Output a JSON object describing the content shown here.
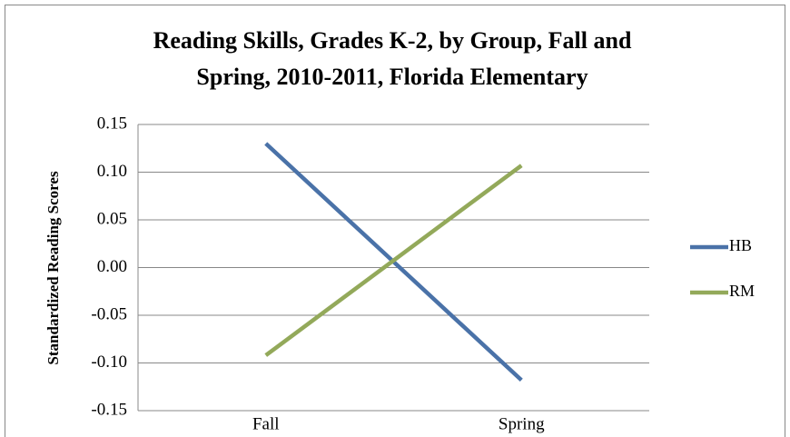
{
  "chart_data": {
    "type": "line",
    "title": [
      "Reading Skills, Grades K-2, by Group, Fall and",
      "Spring, 2010-2011, Florida Elementary"
    ],
    "y_label": "Standardized Reading Scores",
    "categories": [
      "Fall",
      "Spring"
    ],
    "series": [
      {
        "name": "HB",
        "color": "#4a72a8",
        "values": [
          0.13,
          -0.118
        ]
      },
      {
        "name": "RM",
        "color": "#93a95a",
        "values": [
          -0.092,
          0.107
        ]
      }
    ],
    "ylim": [
      -0.15,
      0.15
    ],
    "yticks": [
      -0.15,
      {
        "value": -0.1,
        "label": "-0.10"
      },
      -0.05,
      {
        "value": 0,
        "label": "0.00"
      },
      0.05,
      {
        "value": 0.1,
        "label": "0.10"
      },
      0.15
    ],
    "grid": true,
    "legend": "right"
  }
}
